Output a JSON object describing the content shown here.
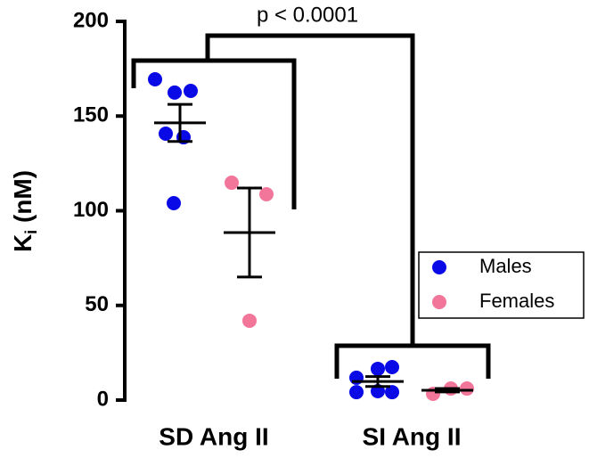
{
  "chart_data": {
    "type": "dot",
    "ylabel_parts": [
      "K",
      "i",
      " (nM)"
    ],
    "annotation": "p < 0.0001",
    "categories": [
      "SD Ang II",
      "SI Ang II"
    ],
    "series": [
      {
        "name": "Males",
        "color": "#0a0ae6",
        "values": [
          [
            169.4,
            162.4,
            163.3,
            140.7,
            138.8,
            104
          ],
          [
            11.8,
            16.5,
            17.4,
            4.2,
            4.7,
            4.2
          ]
        ],
        "mean": [
          146.4,
          9.8
        ],
        "sem": [
          9.8,
          2.6
        ]
      },
      {
        "name": "Females",
        "color": "#f2769a",
        "values": [
          [
            114.8,
            108.7,
            41.9
          ],
          [
            3.3,
            6.1,
            6.1
          ]
        ],
        "mean": [
          88.5,
          5.2
        ],
        "sem": [
          23.5,
          0.9
        ]
      }
    ],
    "ylim": [
      0,
      200
    ],
    "yticks": [
      0,
      50,
      100,
      150,
      200
    ]
  }
}
